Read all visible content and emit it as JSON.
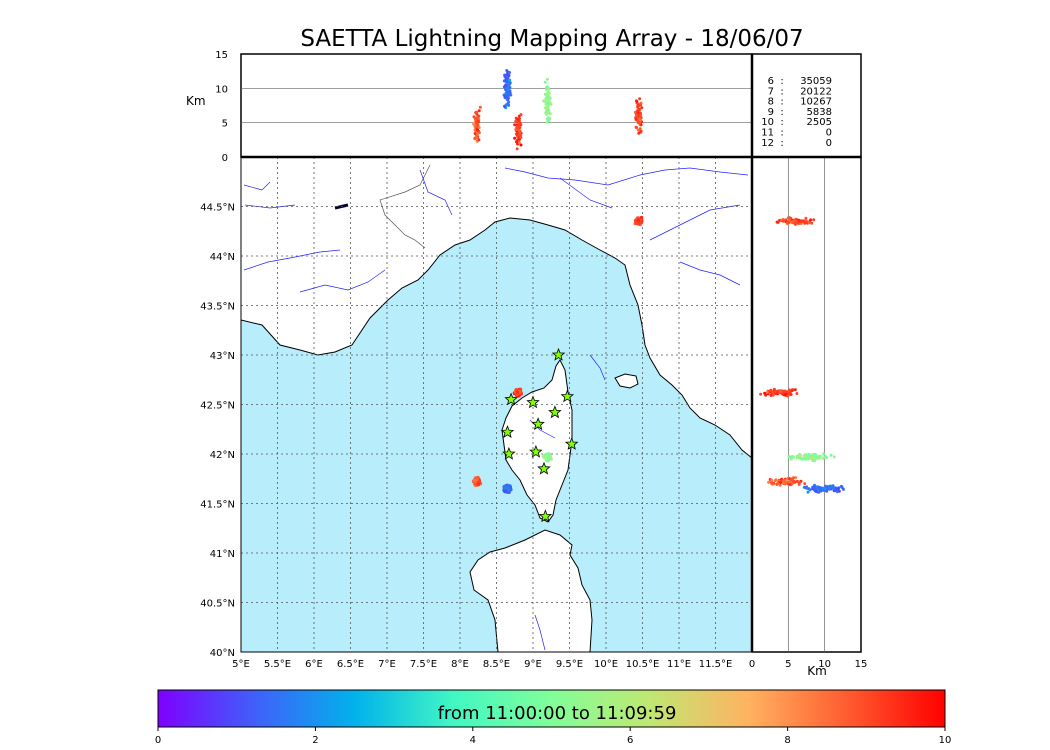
{
  "chart_data": {
    "type": "scatter",
    "title": "SAETTA Lightning Mapping Array - 18/06/07",
    "map": {
      "lon_range": [
        5.0,
        12.0
      ],
      "lat_range": [
        40.0,
        45.0
      ],
      "x_ticks": [
        "5°E",
        "5.5°E",
        "6°E",
        "6.5°E",
        "7°E",
        "7.5°E",
        "8°E",
        "8.5°E",
        "9°E",
        "9.5°E",
        "10°E",
        "10.5°E",
        "11°E",
        "11.5°E"
      ],
      "y_ticks": [
        "40°N",
        "40.5°N",
        "41°N",
        "41.5°N",
        "42°N",
        "42.5°N",
        "43°N",
        "43.5°N",
        "44°N",
        "44.5°N"
      ],
      "gridlines": true,
      "sea_color": "#b8edfb",
      "land_color": "#ffffff"
    },
    "altitude_lon_panel": {
      "ylabel": "Km",
      "y_ticks": [
        "0",
        "5",
        "10",
        "15"
      ],
      "y_range": [
        0,
        15
      ]
    },
    "altitude_lat_panel": {
      "xlabel": "Km",
      "x_ticks": [
        "0",
        "5",
        "10",
        "15"
      ],
      "x_range": [
        0,
        15
      ]
    },
    "station_counts": [
      {
        "stations": "6",
        "count": "35059",
        "color": "#000000"
      },
      {
        "stations": "7",
        "count": "20122",
        "color": "#ff0000"
      },
      {
        "stations": "8",
        "count": "10267",
        "color": "#000000"
      },
      {
        "stations": "9",
        "count": "5838",
        "color": "#000000"
      },
      {
        "stations": "10",
        "count": "2505",
        "color": "#000000"
      },
      {
        "stations": "11",
        "count": "0",
        "color": "#000000"
      },
      {
        "stations": "12",
        "count": "0",
        "color": "#000000"
      }
    ],
    "stations": [
      {
        "lon": 9.35,
        "lat": 43.0
      },
      {
        "lon": 8.7,
        "lat": 42.55
      },
      {
        "lon": 9.0,
        "lat": 42.52
      },
      {
        "lon": 9.47,
        "lat": 42.58
      },
      {
        "lon": 9.3,
        "lat": 42.42
      },
      {
        "lon": 9.07,
        "lat": 42.3
      },
      {
        "lon": 8.65,
        "lat": 42.22
      },
      {
        "lon": 9.53,
        "lat": 42.1
      },
      {
        "lon": 8.67,
        "lat": 42.0
      },
      {
        "lon": 9.04,
        "lat": 42.02
      },
      {
        "lon": 9.15,
        "lat": 41.85
      },
      {
        "lon": 9.17,
        "lat": 41.37
      }
    ],
    "lightning_clusters": [
      {
        "lon": 8.23,
        "lat": 41.72,
        "time_min": 8.8,
        "alt_km": 5
      },
      {
        "lon": 8.65,
        "lat": 41.65,
        "time_min": 1.5,
        "alt_km": 10
      },
      {
        "lon": 8.8,
        "lat": 42.62,
        "time_min": 9.3,
        "alt_km": 4
      },
      {
        "lon": 9.2,
        "lat": 41.97,
        "time_min": 5.2,
        "alt_km": 8
      },
      {
        "lon": 10.45,
        "lat": 44.35,
        "time_min": 9.0,
        "alt_km": 6
      }
    ],
    "colorbar": {
      "label": "from 11:00:00 to 11:09:59",
      "ticks": [
        "0",
        "2",
        "4",
        "6",
        "8",
        "10"
      ],
      "range": [
        0,
        10
      ],
      "colors": [
        "#7f00ff",
        "#3f61fa",
        "#01b2eb",
        "#41f7c4",
        "#81fe99",
        "#c0e773",
        "#ffb360",
        "#ff5c30",
        "#ff0000"
      ]
    }
  }
}
